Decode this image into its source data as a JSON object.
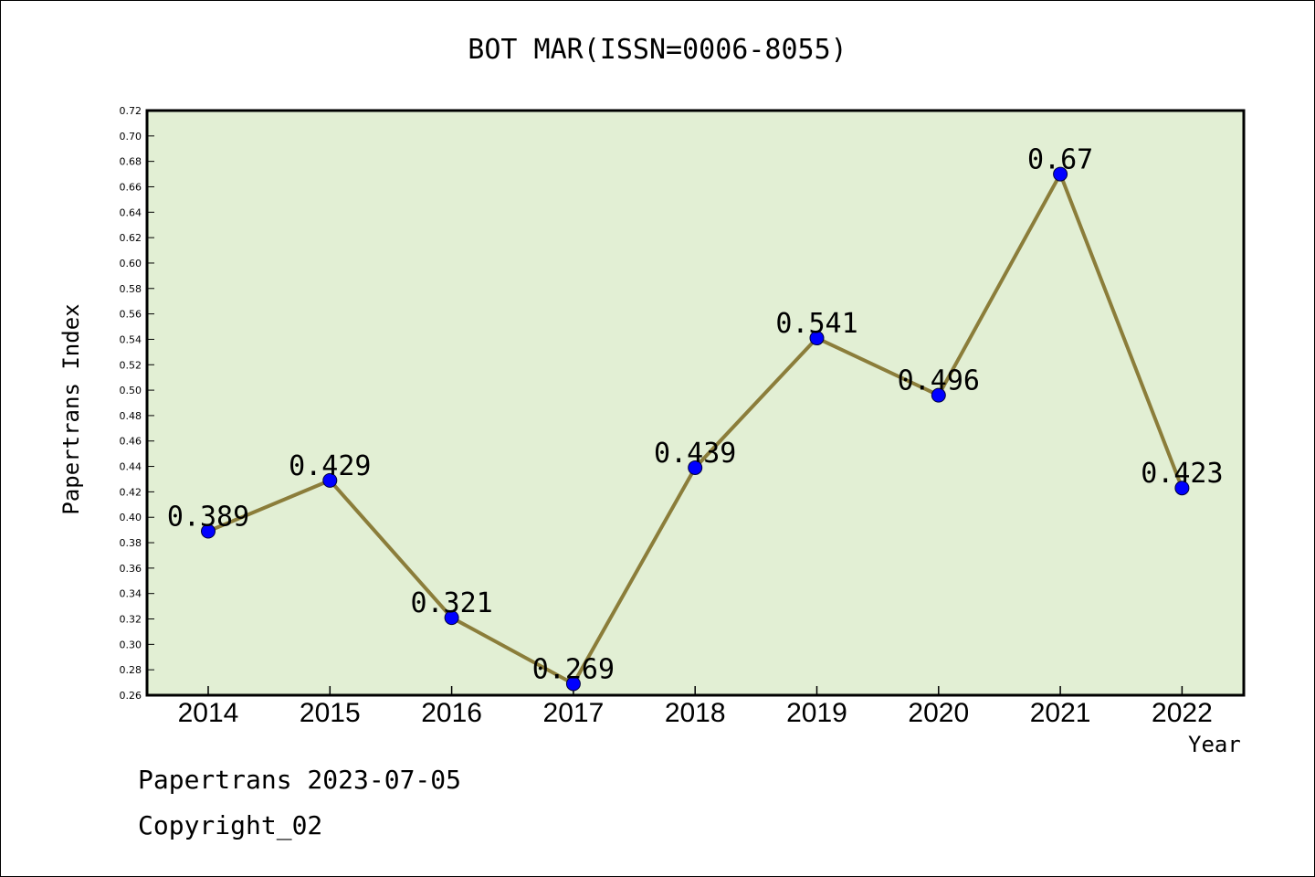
{
  "chart_data": {
    "type": "line",
    "title": "BOT MAR(ISSN=0006-8055)",
    "xlabel": "Year",
    "ylabel": "Papertrans Index",
    "categories": [
      "2014",
      "2015",
      "2016",
      "2017",
      "2018",
      "2019",
      "2020",
      "2021",
      "2022"
    ],
    "values": [
      0.389,
      0.429,
      0.321,
      0.269,
      0.439,
      0.541,
      0.496,
      0.67,
      0.423
    ],
    "data_labels": [
      "0.389",
      "0.429",
      "0.321",
      "0.269",
      "0.439",
      "0.541",
      "0.496",
      "0.67",
      "0.423"
    ],
    "ylim": [
      0.26,
      0.72
    ],
    "yticks": [
      "0.26",
      "0.28",
      "0.30",
      "0.32",
      "0.34",
      "0.36",
      "0.38",
      "0.40",
      "0.42",
      "0.44",
      "0.46",
      "0.48",
      "0.50",
      "0.52",
      "0.54",
      "0.56",
      "0.58",
      "0.60",
      "0.62",
      "0.64",
      "0.66",
      "0.68",
      "0.70",
      "0.72"
    ],
    "grid": false,
    "colors": {
      "plot_background": "#e2efd4",
      "line": "#8b7d3a",
      "marker": "#0000ff"
    }
  },
  "footer": {
    "line1": "Papertrans 2023-07-05",
    "line2": "Copyright_02"
  }
}
